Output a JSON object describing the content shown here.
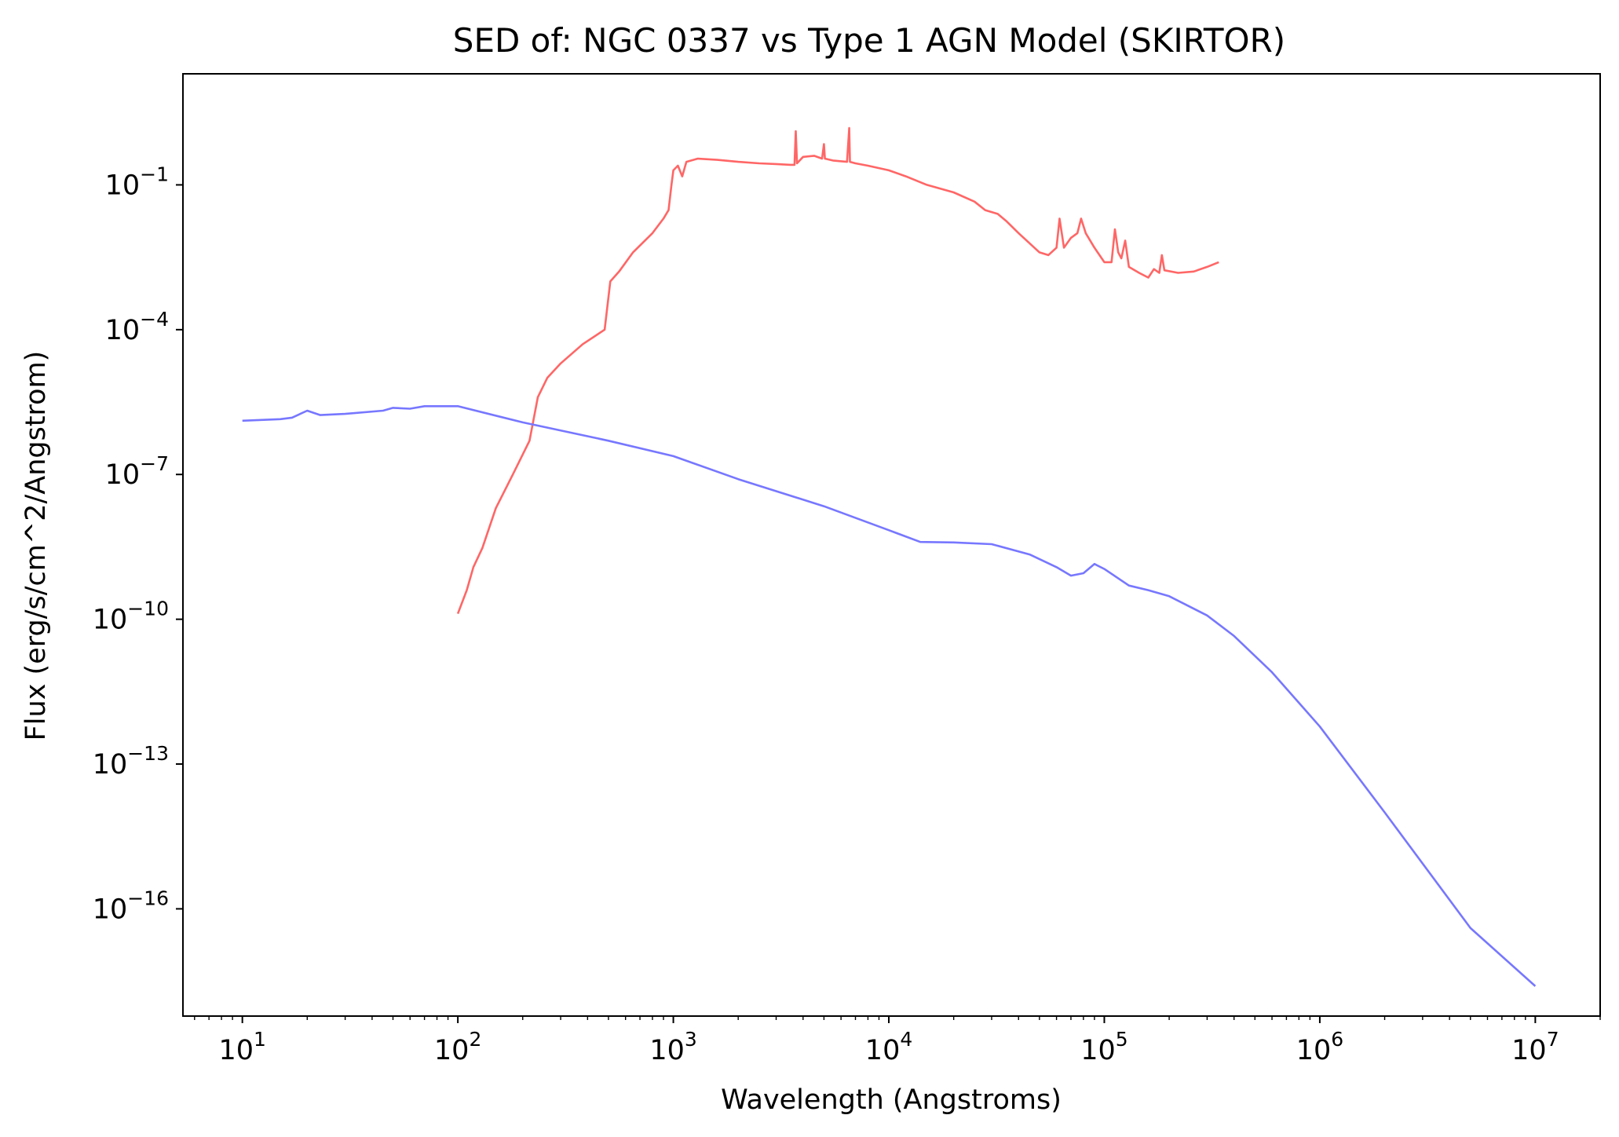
{
  "chart_data": {
    "type": "line",
    "title": "SED of: NGC 0337 vs Type 1 AGN Model (SKIRTOR)",
    "xlabel": "Wavelength (Angstroms)",
    "ylabel": "Flux (erg/s/cm^2/Angstrom)",
    "xscale": "log",
    "yscale": "log",
    "xlim": [
      5.3,
      20000000
    ],
    "ylim": [
      6e-19,
      20
    ],
    "x_ticks": [
      {
        "value": 10,
        "base": "10",
        "exp": "1"
      },
      {
        "value": 100,
        "base": "10",
        "exp": "2"
      },
      {
        "value": 1000,
        "base": "10",
        "exp": "3"
      },
      {
        "value": 10000,
        "base": "10",
        "exp": "4"
      },
      {
        "value": 100000,
        "base": "10",
        "exp": "5"
      },
      {
        "value": 1000000,
        "base": "10",
        "exp": "6"
      },
      {
        "value": 10000000,
        "base": "10",
        "exp": "7"
      }
    ],
    "y_ticks": [
      {
        "value": 0.1,
        "base": "10",
        "exp": "−1"
      },
      {
        "value": 0.0001,
        "base": "10",
        "exp": "−4"
      },
      {
        "value": 1e-07,
        "base": "10",
        "exp": "−7"
      },
      {
        "value": 1e-10,
        "base": "10",
        "exp": "−10"
      },
      {
        "value": 1e-13,
        "base": "10",
        "exp": "−13"
      },
      {
        "value": 1e-16,
        "base": "10",
        "exp": "−16"
      }
    ],
    "grid": false,
    "legend": "none",
    "series": [
      {
        "color": "#ff6666",
        "points": [
          [
            100,
            1.3e-10
          ],
          [
            110,
            4e-10
          ],
          [
            118,
            1.2e-09
          ],
          [
            130,
            3e-09
          ],
          [
            150,
            2e-08
          ],
          [
            180,
            1e-07
          ],
          [
            215,
            5e-07
          ],
          [
            235,
            4e-06
          ],
          [
            260,
            1e-05
          ],
          [
            300,
            2e-05
          ],
          [
            380,
            5e-05
          ],
          [
            480,
            0.0001
          ],
          [
            510,
            0.001
          ],
          [
            560,
            0.0016
          ],
          [
            650,
            0.004
          ],
          [
            800,
            0.01
          ],
          [
            900,
            0.02
          ],
          [
            950,
            0.03
          ],
          [
            980,
            0.1
          ],
          [
            1000,
            0.2
          ],
          [
            1050,
            0.25
          ],
          [
            1100,
            0.15
          ],
          [
            1150,
            0.3
          ],
          [
            1300,
            0.35
          ],
          [
            1600,
            0.33
          ],
          [
            2000,
            0.3
          ],
          [
            2500,
            0.28
          ],
          [
            3000,
            0.27
          ],
          [
            3500,
            0.26
          ],
          [
            3650,
            0.26
          ],
          [
            3700,
            1.3
          ],
          [
            3750,
            0.28
          ],
          [
            4000,
            0.38
          ],
          [
            4500,
            0.4
          ],
          [
            4900,
            0.35
          ],
          [
            5000,
            0.7
          ],
          [
            5050,
            0.35
          ],
          [
            5500,
            0.32
          ],
          [
            6400,
            0.3
          ],
          [
            6550,
            1.5
          ],
          [
            6600,
            0.3
          ],
          [
            7000,
            0.28
          ],
          [
            8000,
            0.25
          ],
          [
            10000,
            0.2
          ],
          [
            12000,
            0.15
          ],
          [
            15000,
            0.1
          ],
          [
            20000,
            0.07
          ],
          [
            25000,
            0.045
          ],
          [
            28000,
            0.03
          ],
          [
            32000,
            0.025
          ],
          [
            35000,
            0.018
          ],
          [
            40000,
            0.01
          ],
          [
            50000,
            0.004
          ],
          [
            55000,
            0.0035
          ],
          [
            60000,
            0.005
          ],
          [
            62000,
            0.02
          ],
          [
            65000,
            0.005
          ],
          [
            70000,
            0.008
          ],
          [
            75000,
            0.01
          ],
          [
            78000,
            0.02
          ],
          [
            82000,
            0.01
          ],
          [
            90000,
            0.005
          ],
          [
            100000,
            0.0025
          ],
          [
            108000,
            0.0025
          ],
          [
            112000,
            0.012
          ],
          [
            116000,
            0.004
          ],
          [
            120000,
            0.003
          ],
          [
            125000,
            0.007
          ],
          [
            130000,
            0.002
          ],
          [
            145000,
            0.0015
          ],
          [
            160000,
            0.0012
          ],
          [
            170000,
            0.0018
          ],
          [
            180000,
            0.0015
          ],
          [
            185000,
            0.0035
          ],
          [
            190000,
            0.0017
          ],
          [
            220000,
            0.0015
          ],
          [
            260000,
            0.0016
          ],
          [
            300000,
            0.002
          ],
          [
            340000,
            0.0025
          ]
        ]
      },
      {
        "color": "#7777ff",
        "points": [
          [
            10,
            1.3e-06
          ],
          [
            15,
            1.4e-06
          ],
          [
            17,
            1.5e-06
          ],
          [
            20,
            2.1e-06
          ],
          [
            23,
            1.7e-06
          ],
          [
            30,
            1.8e-06
          ],
          [
            45,
            2.1e-06
          ],
          [
            50,
            2.4e-06
          ],
          [
            60,
            2.3e-06
          ],
          [
            70,
            2.6e-06
          ],
          [
            100,
            2.6e-06
          ],
          [
            200,
            1.2e-06
          ],
          [
            500,
            5e-07
          ],
          [
            1000,
            2.4e-07
          ],
          [
            2000,
            8e-08
          ],
          [
            5000,
            2.2e-08
          ],
          [
            10000,
            7e-09
          ],
          [
            14000,
            4e-09
          ],
          [
            20000,
            3.9e-09
          ],
          [
            30000,
            3.6e-09
          ],
          [
            45000,
            2.2e-09
          ],
          [
            60000,
            1.2e-09
          ],
          [
            70000,
            8e-10
          ],
          [
            80000,
            9e-10
          ],
          [
            90000,
            1.4e-09
          ],
          [
            100000,
            1.1e-09
          ],
          [
            130000,
            5e-10
          ],
          [
            160000,
            4e-10
          ],
          [
            200000,
            3e-10
          ],
          [
            300000,
            1.2e-10
          ],
          [
            400000,
            4.5e-11
          ],
          [
            600000,
            8e-12
          ],
          [
            1000000,
            6e-13
          ],
          [
            2000000,
            1e-14
          ],
          [
            5000000,
            4e-17
          ],
          [
            10000000,
            2.5e-18
          ]
        ]
      }
    ]
  }
}
